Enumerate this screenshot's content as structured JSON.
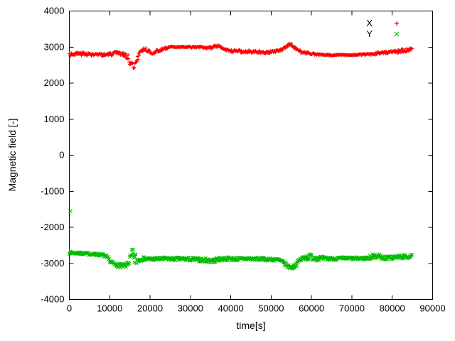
{
  "chart_data": {
    "type": "scatter",
    "title": "",
    "xlabel": "time[s]",
    "ylabel": "Magnetic field [-]",
    "xlim": [
      0,
      90000
    ],
    "ylim": [
      -4000,
      4000
    ],
    "xticks": [
      0,
      10000,
      20000,
      30000,
      40000,
      50000,
      60000,
      70000,
      80000,
      90000
    ],
    "yticks": [
      -4000,
      -3000,
      -2000,
      -1000,
      0,
      1000,
      2000,
      3000,
      4000
    ],
    "grid": false,
    "legend_position": "top-right",
    "sample_step": 130,
    "legend": [
      {
        "label": "X",
        "marker": "plus",
        "color": "#ff0000"
      },
      {
        "label": "Y",
        "marker": "cross",
        "color": "#00bb00"
      }
    ],
    "series": [
      {
        "name": "Y",
        "marker": "cross",
        "color": "#00bb00",
        "seed": 7,
        "outliers": [
          [
            250,
            -1550
          ]
        ],
        "anchors": [
          [
            0,
            -2700,
            35
          ],
          [
            2000,
            -2715,
            35
          ],
          [
            4000,
            -2730,
            35
          ],
          [
            6000,
            -2745,
            35
          ],
          [
            8000,
            -2760,
            40
          ],
          [
            9200,
            -2820,
            45
          ],
          [
            10200,
            -2950,
            55
          ],
          [
            11200,
            -3030,
            60
          ],
          [
            12500,
            -3060,
            60
          ],
          [
            13500,
            -3080,
            65
          ],
          [
            14300,
            -3030,
            70
          ],
          [
            15000,
            -2900,
            150
          ],
          [
            15600,
            -2820,
            240
          ],
          [
            16200,
            -2850,
            240
          ],
          [
            16800,
            -2920,
            130
          ],
          [
            17500,
            -2880,
            60
          ],
          [
            18500,
            -2870,
            50
          ],
          [
            20000,
            -2880,
            45
          ],
          [
            22000,
            -2875,
            45
          ],
          [
            24000,
            -2870,
            45
          ],
          [
            26000,
            -2880,
            45
          ],
          [
            28000,
            -2875,
            50
          ],
          [
            30000,
            -2885,
            55
          ],
          [
            32000,
            -2900,
            55
          ],
          [
            34000,
            -2910,
            60
          ],
          [
            35500,
            -2930,
            70
          ],
          [
            37000,
            -2890,
            55
          ],
          [
            38500,
            -2870,
            50
          ],
          [
            40000,
            -2870,
            50
          ],
          [
            42000,
            -2880,
            50
          ],
          [
            44000,
            -2870,
            45
          ],
          [
            46000,
            -2875,
            45
          ],
          [
            48000,
            -2880,
            45
          ],
          [
            50000,
            -2890,
            45
          ],
          [
            52000,
            -2910,
            50
          ],
          [
            53300,
            -3000,
            55
          ],
          [
            54300,
            -3090,
            60
          ],
          [
            55300,
            -3110,
            60
          ],
          [
            56300,
            -3010,
            55
          ],
          [
            57300,
            -2890,
            70
          ],
          [
            58500,
            -2830,
            85
          ],
          [
            60000,
            -2820,
            95
          ],
          [
            61500,
            -2850,
            80
          ],
          [
            63000,
            -2870,
            55
          ],
          [
            65000,
            -2870,
            45
          ],
          [
            67000,
            -2865,
            40
          ],
          [
            69000,
            -2860,
            40
          ],
          [
            71000,
            -2865,
            40
          ],
          [
            73000,
            -2860,
            40
          ],
          [
            74500,
            -2840,
            50
          ],
          [
            76000,
            -2770,
            85
          ],
          [
            77500,
            -2840,
            60
          ],
          [
            79000,
            -2850,
            50
          ],
          [
            80500,
            -2830,
            55
          ],
          [
            82000,
            -2820,
            60
          ],
          [
            83500,
            -2815,
            55
          ],
          [
            85000,
            -2800,
            45
          ]
        ]
      },
      {
        "name": "X",
        "marker": "plus",
        "color": "#ff0000",
        "seed": 3,
        "outliers": [],
        "anchors": [
          [
            0,
            2800,
            50
          ],
          [
            2000,
            2820,
            50
          ],
          [
            4000,
            2810,
            50
          ],
          [
            6000,
            2790,
            45
          ],
          [
            8000,
            2780,
            45
          ],
          [
            10000,
            2800,
            50
          ],
          [
            12000,
            2830,
            55
          ],
          [
            13500,
            2800,
            50
          ],
          [
            14500,
            2720,
            80
          ],
          [
            15300,
            2520,
            90
          ],
          [
            16000,
            2480,
            100
          ],
          [
            16700,
            2600,
            80
          ],
          [
            17500,
            2880,
            60
          ],
          [
            18500,
            2950,
            50
          ],
          [
            19500,
            2900,
            45
          ],
          [
            20500,
            2840,
            45
          ],
          [
            22000,
            2890,
            45
          ],
          [
            23500,
            2960,
            35
          ],
          [
            25000,
            3000,
            25
          ],
          [
            27000,
            3000,
            22
          ],
          [
            29000,
            3000,
            22
          ],
          [
            31000,
            3000,
            22
          ],
          [
            33000,
            3000,
            25
          ],
          [
            34500,
            2960,
            35
          ],
          [
            36000,
            3020,
            45
          ],
          [
            37000,
            3040,
            45
          ],
          [
            38000,
            2990,
            40
          ],
          [
            39000,
            2900,
            45
          ],
          [
            40000,
            2870,
            50
          ],
          [
            41500,
            2910,
            45
          ],
          [
            43000,
            2860,
            45
          ],
          [
            44500,
            2880,
            40
          ],
          [
            46000,
            2880,
            40
          ],
          [
            47500,
            2870,
            40
          ],
          [
            49000,
            2860,
            40
          ],
          [
            50500,
            2870,
            40
          ],
          [
            52000,
            2900,
            40
          ],
          [
            53500,
            2990,
            40
          ],
          [
            54500,
            3080,
            40
          ],
          [
            55500,
            3030,
            45
          ],
          [
            56500,
            2930,
            45
          ],
          [
            57500,
            2860,
            40
          ],
          [
            59000,
            2830,
            35
          ],
          [
            60500,
            2810,
            30
          ],
          [
            62000,
            2790,
            25
          ],
          [
            64000,
            2780,
            20
          ],
          [
            66000,
            2780,
            18
          ],
          [
            68000,
            2780,
            18
          ],
          [
            70000,
            2780,
            18
          ],
          [
            72000,
            2790,
            20
          ],
          [
            74000,
            2800,
            25
          ],
          [
            76000,
            2820,
            35
          ],
          [
            78000,
            2850,
            40
          ],
          [
            80000,
            2870,
            45
          ],
          [
            81500,
            2890,
            55
          ],
          [
            83000,
            2900,
            55
          ],
          [
            84300,
            2930,
            50
          ],
          [
            85000,
            2950,
            40
          ]
        ]
      }
    ]
  }
}
